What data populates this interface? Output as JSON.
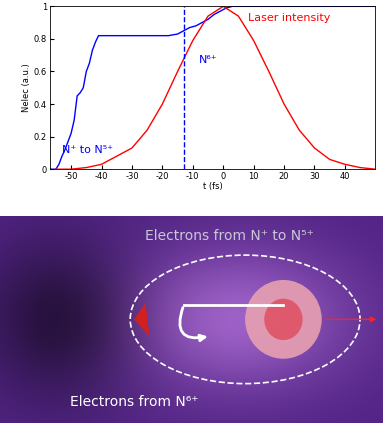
{
  "chart_data": {
    "type": "line",
    "x_label": "t (fs)",
    "y_label": "Nelec (a.u.)",
    "xlim": [
      -57,
      50
    ],
    "xticks": [
      -50,
      -40,
      -30,
      -20,
      -10,
      0,
      10,
      20,
      30,
      40
    ],
    "ylim": [
      0,
      1
    ],
    "yticks": [
      0,
      0.2,
      0.4,
      0.6,
      0.8,
      1
    ],
    "grid": false,
    "series": [
      {
        "color": "#0000ff",
        "line_style": "solid",
        "x": [
          -57,
          -55,
          -54,
          -53,
          -52,
          -51,
          -50,
          -49,
          -48,
          -47,
          -46,
          -45,
          -44,
          -43,
          -42,
          -41,
          -35,
          -25,
          -18,
          -15,
          -13,
          -11,
          -9,
          -7,
          -5,
          -3,
          -1,
          1,
          3,
          5,
          10,
          20,
          30,
          40,
          50
        ],
        "values": [
          0,
          0,
          0.03,
          0.08,
          0.12,
          0.17,
          0.22,
          0.3,
          0.45,
          0.47,
          0.5,
          0.6,
          0.65,
          0.73,
          0.78,
          0.82,
          0.82,
          0.82,
          0.82,
          0.83,
          0.85,
          0.87,
          0.88,
          0.9,
          0.92,
          0.95,
          0.97,
          0.99,
          1,
          1,
          1,
          1,
          1,
          1,
          1
        ]
      },
      {
        "name": "Laser intensity",
        "color": "#ff0000",
        "line_style": "solid",
        "x": [
          -55,
          -50,
          -45,
          -40,
          -35,
          -30,
          -25,
          -20,
          -15,
          -10,
          -5,
          0,
          5,
          10,
          15,
          20,
          25,
          30,
          35,
          40,
          45,
          50
        ],
        "values": [
          0,
          0,
          0.01,
          0.03,
          0.08,
          0.13,
          0.24,
          0.4,
          0.6,
          0.79,
          0.94,
          1.0,
          0.94,
          0.79,
          0.6,
          0.4,
          0.24,
          0.13,
          0.06,
          0.03,
          0.01,
          0
        ]
      }
    ],
    "vertical_lines": [
      {
        "x": -13,
        "color": "#0000ff",
        "line_style": "dashed"
      }
    ],
    "annotations": [
      {
        "text": "N⁶⁺",
        "color": "#0000ff"
      },
      {
        "text": "N⁺ to N⁵⁺",
        "color": "#0000ff"
      }
    ]
  },
  "image_panel": {
    "labels": [
      {
        "text": "Electrons from N⁺ to N⁵⁺",
        "color": "#c8c8d8"
      },
      {
        "text": "Electrons from N⁶⁺",
        "color": "#ffffff"
      }
    ]
  }
}
